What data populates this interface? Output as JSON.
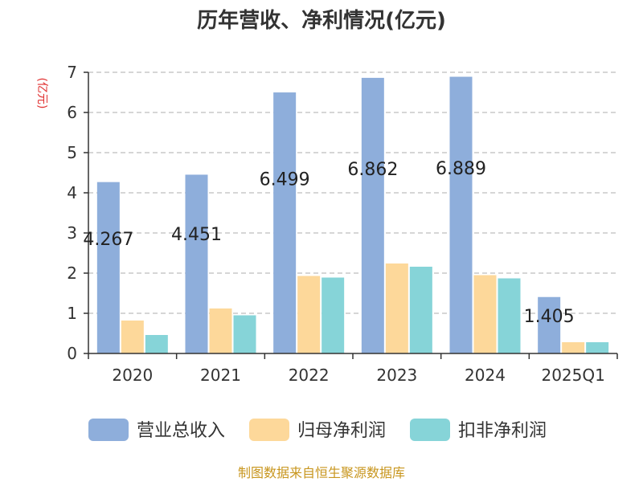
{
  "chart_data": {
    "type": "bar",
    "title": "历年营收、净利情况(亿元)",
    "ylabel": "(亿元)",
    "categories": [
      "2020",
      "2021",
      "2022",
      "2023",
      "2024",
      "2025Q1"
    ],
    "ylim": [
      0,
      7
    ],
    "yticks": [
      "0",
      "1",
      "2",
      "3",
      "4",
      "5",
      "6",
      "7"
    ],
    "grid": true,
    "legend_position": "bottom",
    "series": [
      {
        "name": "营业总收入",
        "color": "#8eaedb",
        "values": [
          4.267,
          4.451,
          6.499,
          6.862,
          6.889,
          1.405
        ]
      },
      {
        "name": "归母净利润",
        "color": "#fdd89a",
        "values": [
          0.82,
          1.12,
          1.93,
          2.24,
          1.95,
          0.28
        ]
      },
      {
        "name": "扣非净利润",
        "color": "#86d4d8",
        "values": [
          0.46,
          0.95,
          1.89,
          2.16,
          1.87,
          0.28
        ]
      }
    ],
    "data_labels": [
      "4.267",
      "4.451",
      "6.499",
      "6.862",
      "6.889",
      "1.405"
    ]
  },
  "source": "制图数据来自恒生聚源数据库"
}
